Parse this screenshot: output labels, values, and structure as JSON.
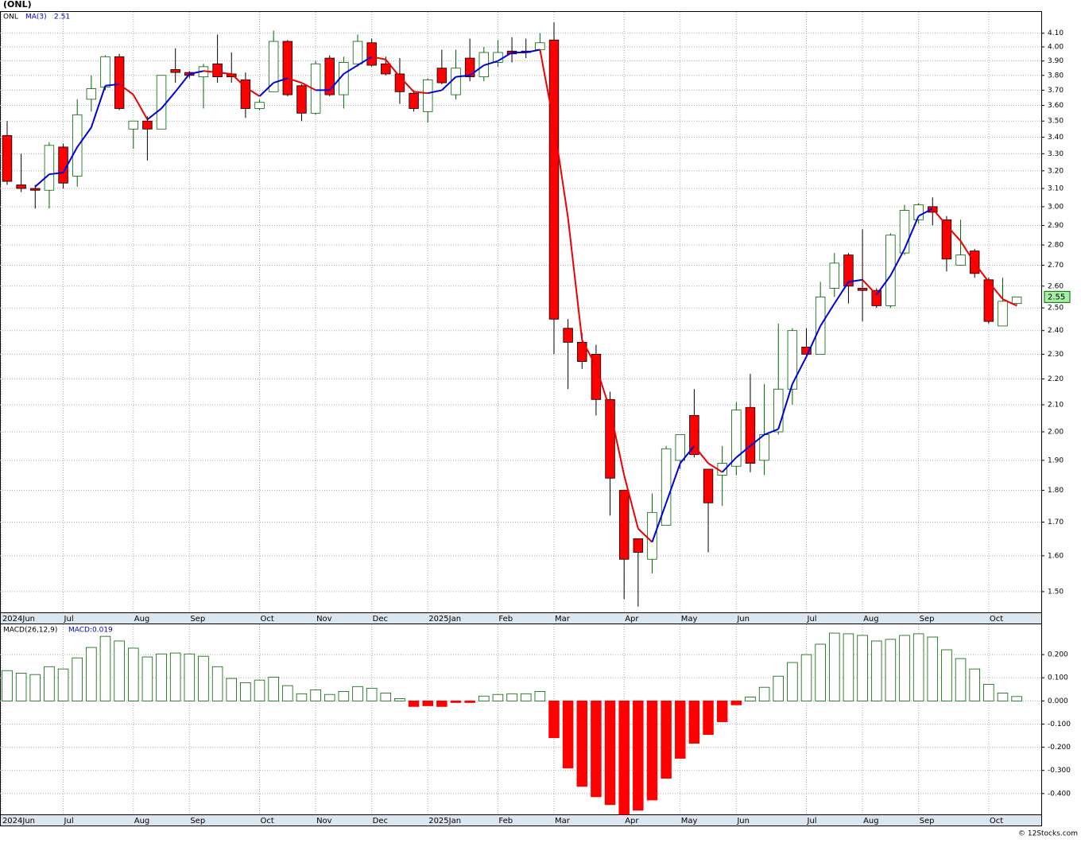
{
  "chart_data": [
    {
      "type": "candlestick",
      "title": "(ONL)",
      "ticker": "ONL",
      "log_scale": true,
      "grid": true,
      "up_color": "#006400",
      "down_color": "#ff0000",
      "xlim": [
        -0.51,
        73.75
      ],
      "xticks": [
        {
          "value": -0.4,
          "label": "2024Jun"
        },
        {
          "value": 4,
          "label": "Jul"
        },
        {
          "value": 9,
          "label": "Aug"
        },
        {
          "value": 13,
          "label": "Sep"
        },
        {
          "value": 18,
          "label": "Oct"
        },
        {
          "value": 22,
          "label": "Nov"
        },
        {
          "value": 26,
          "label": "Dec"
        },
        {
          "value": 30,
          "label": "2025Jan"
        },
        {
          "value": 35,
          "label": "Feb"
        },
        {
          "value": 39,
          "label": "Mar"
        },
        {
          "value": 44,
          "label": "Apr"
        },
        {
          "value": 48,
          "label": "May"
        },
        {
          "value": 52,
          "label": "Jun"
        },
        {
          "value": 57,
          "label": "Jul"
        },
        {
          "value": 61,
          "label": "Aug"
        },
        {
          "value": 65,
          "label": "Sep"
        },
        {
          "value": 70,
          "label": "Oct"
        }
      ],
      "ylim": [
        1.445,
        4.26
      ],
      "yticks": [
        {
          "value": 1.5,
          "label": "1.50"
        },
        {
          "value": 1.6,
          "label": "1.60"
        },
        {
          "value": 1.7,
          "label": "1.70"
        },
        {
          "value": 1.8,
          "label": "1.80"
        },
        {
          "value": 1.9,
          "label": "1.90"
        },
        {
          "value": 2.0,
          "label": "2.00"
        },
        {
          "value": 2.1,
          "label": "2.10"
        },
        {
          "value": 2.2,
          "label": "2.20"
        },
        {
          "value": 2.3,
          "label": "2.30"
        },
        {
          "value": 2.4,
          "label": "2.40"
        },
        {
          "value": 2.5,
          "label": "2.50"
        },
        {
          "value": 2.6,
          "label": "2.60"
        },
        {
          "value": 2.7,
          "label": "2.70"
        },
        {
          "value": 2.8,
          "label": "2.80"
        },
        {
          "value": 2.9,
          "label": "2.90"
        },
        {
          "value": 3.0,
          "label": "3.00"
        },
        {
          "value": 3.1,
          "label": "3.10"
        },
        {
          "value": 3.2,
          "label": "3.20"
        },
        {
          "value": 3.3,
          "label": "3.30"
        },
        {
          "value": 3.4,
          "label": "3.40"
        },
        {
          "value": 3.5,
          "label": "3.50"
        },
        {
          "value": 3.6,
          "label": "3.60"
        },
        {
          "value": 3.7,
          "label": "3.70"
        },
        {
          "value": 3.8,
          "label": "3.80"
        },
        {
          "value": 3.9,
          "label": "3.90"
        },
        {
          "value": 4.0,
          "label": "4.00"
        },
        {
          "value": 4.1,
          "label": "4.10"
        }
      ],
      "open": [
        3.41,
        3.12,
        3.1,
        3.09,
        3.34,
        3.17,
        3.64,
        3.72,
        3.93,
        3.45,
        3.5,
        3.45,
        3.84,
        3.82,
        3.79,
        3.88,
        3.81,
        3.77,
        3.58,
        3.69,
        4.04,
        3.73,
        3.55,
        3.92,
        3.67,
        3.88,
        4.03,
        3.88,
        3.81,
        3.68,
        3.56,
        3.85,
        3.67,
        3.92,
        3.79,
        3.89,
        3.97,
        3.97,
        3.98,
        4.05,
        2.41,
        2.35,
        2.3,
        2.12,
        1.8,
        1.65,
        1.59,
        1.69,
        1.9,
        2.06,
        1.87,
        1.85,
        1.88,
        2.09,
        1.9,
        2.0,
        2.16,
        2.33,
        2.3,
        2.59,
        2.75,
        2.59,
        2.58,
        2.51,
        2.76,
        2.93,
        3.0,
        2.93,
        2.7,
        2.77,
        2.63,
        2.42,
        2.52
      ],
      "high": [
        3.5,
        3.3,
        3.12,
        3.37,
        3.36,
        3.64,
        3.8,
        3.94,
        3.95,
        3.5,
        3.53,
        3.8,
        3.99,
        3.83,
        3.88,
        4.09,
        3.96,
        3.82,
        3.64,
        4.12,
        4.05,
        3.74,
        3.9,
        3.94,
        3.93,
        4.09,
        4.06,
        3.93,
        3.92,
        3.7,
        3.78,
        3.98,
        3.98,
        4.06,
        4.0,
        4.05,
        4.07,
        4.06,
        4.1,
        4.18,
        2.45,
        2.39,
        2.34,
        2.15,
        1.8,
        1.65,
        1.79,
        1.95,
        1.99,
        2.16,
        1.87,
        1.95,
        2.11,
        2.22,
        2.18,
        2.43,
        2.41,
        2.41,
        2.62,
        2.76,
        2.76,
        2.88,
        2.59,
        2.86,
        3.01,
        3.02,
        3.05,
        2.95,
        2.93,
        2.78,
        2.64,
        2.64,
        2.55
      ],
      "low": [
        3.12,
        3.08,
        2.99,
        2.99,
        3.1,
        3.11,
        3.56,
        3.7,
        3.57,
        3.33,
        3.26,
        3.45,
        3.75,
        3.78,
        3.58,
        3.75,
        3.75,
        3.52,
        3.57,
        3.69,
        3.66,
        3.5,
        3.54,
        3.66,
        3.58,
        3.86,
        3.86,
        3.8,
        3.61,
        3.56,
        3.49,
        3.74,
        3.64,
        3.76,
        3.76,
        3.86,
        3.89,
        3.92,
        3.97,
        2.3,
        2.16,
        2.24,
        2.06,
        1.72,
        1.48,
        1.46,
        1.55,
        1.69,
        1.87,
        1.91,
        1.61,
        1.75,
        1.85,
        1.86,
        1.85,
        1.99,
        2.1,
        2.29,
        2.3,
        2.55,
        2.52,
        2.44,
        2.5,
        2.5,
        2.75,
        2.91,
        2.9,
        2.67,
        2.7,
        2.64,
        2.43,
        2.42,
        2.51
      ],
      "close": [
        3.14,
        3.1,
        3.09,
        3.35,
        3.13,
        3.54,
        3.71,
        3.93,
        3.58,
        3.5,
        3.45,
        3.8,
        3.82,
        3.8,
        3.86,
        3.79,
        3.79,
        3.58,
        3.62,
        4.04,
        3.67,
        3.55,
        3.88,
        3.67,
        3.89,
        4.04,
        3.87,
        3.81,
        3.69,
        3.58,
        3.77,
        3.75,
        3.85,
        3.79,
        3.96,
        3.96,
        3.95,
        3.96,
        4.03,
        2.45,
        2.35,
        2.27,
        2.12,
        1.84,
        1.59,
        1.61,
        1.73,
        1.94,
        1.99,
        1.92,
        1.76,
        1.89,
        2.08,
        1.89,
        1.99,
        2.16,
        2.4,
        2.3,
        2.55,
        2.71,
        2.6,
        2.58,
        2.51,
        2.85,
        2.98,
        3.01,
        2.97,
        2.73,
        2.75,
        2.66,
        2.44,
        2.53,
        2.55
      ],
      "series": [
        {
          "name": "MA(3)",
          "rising_color": "#0000dd",
          "falling_color": "#ee0000",
          "values": [
            null,
            null,
            3.11,
            3.18,
            3.19,
            3.34,
            3.46,
            3.73,
            3.74,
            3.67,
            3.51,
            3.58,
            3.69,
            3.81,
            3.83,
            3.82,
            3.81,
            3.72,
            3.66,
            3.75,
            3.78,
            3.75,
            3.7,
            3.7,
            3.81,
            3.87,
            3.93,
            3.91,
            3.79,
            3.69,
            3.68,
            3.7,
            3.79,
            3.8,
            3.87,
            3.9,
            3.96,
            3.96,
            3.98,
            3.48,
            2.94,
            2.36,
            2.25,
            2.08,
            1.85,
            1.68,
            1.64,
            1.76,
            1.89,
            1.95,
            1.89,
            1.86,
            1.91,
            1.95,
            1.99,
            2.01,
            2.18,
            2.29,
            2.42,
            2.52,
            2.62,
            2.63,
            2.56,
            2.65,
            2.78,
            2.95,
            2.99,
            2.9,
            2.82,
            2.71,
            2.62,
            2.54,
            2.51
          ]
        }
      ]
    },
    {
      "type": "bar",
      "legend": [
        "MACD(26,12,9)",
        "MACD:0.019"
      ],
      "grid": true,
      "positive_color": "#006400",
      "negative_color": "#ff0000",
      "xlim": [
        -0.51,
        73.75
      ],
      "xticks": [
        {
          "value": -0.4,
          "label": "2024Jun"
        },
        {
          "value": 4,
          "label": "Jul"
        },
        {
          "value": 9,
          "label": "Aug"
        },
        {
          "value": 13,
          "label": "Sep"
        },
        {
          "value": 18,
          "label": "Oct"
        },
        {
          "value": 22,
          "label": "Nov"
        },
        {
          "value": 26,
          "label": "Dec"
        },
        {
          "value": 30,
          "label": "2025Jan"
        },
        {
          "value": 35,
          "label": "Feb"
        },
        {
          "value": 39,
          "label": "Mar"
        },
        {
          "value": 44,
          "label": "Apr"
        },
        {
          "value": 48,
          "label": "May"
        },
        {
          "value": 52,
          "label": "Jun"
        },
        {
          "value": 57,
          "label": "Jul"
        },
        {
          "value": 61,
          "label": "Aug"
        },
        {
          "value": 65,
          "label": "Sep"
        },
        {
          "value": 70,
          "label": "Oct"
        }
      ],
      "ylim": [
        -0.49,
        0.331
      ],
      "yticks": [
        {
          "value": -0.4,
          "label": "-0.400"
        },
        {
          "value": -0.3,
          "label": "-0.300"
        },
        {
          "value": -0.2,
          "label": "-0.200"
        },
        {
          "value": -0.1,
          "label": "-0.100"
        },
        {
          "value": 0,
          "label": "0.000"
        },
        {
          "value": 0.1,
          "label": "0.100"
        },
        {
          "value": 0.2,
          "label": "0.200"
        }
      ],
      "values": [
        0.131,
        0.12,
        0.114,
        0.148,
        0.138,
        0.186,
        0.231,
        0.279,
        0.259,
        0.228,
        0.19,
        0.203,
        0.207,
        0.203,
        0.193,
        0.148,
        0.097,
        0.079,
        0.09,
        0.103,
        0.066,
        0.031,
        0.048,
        0.028,
        0.041,
        0.062,
        0.055,
        0.034,
        0.01,
        -0.024,
        -0.021,
        -0.024,
        -0.007,
        -0.007,
        0.021,
        0.028,
        0.031,
        0.031,
        0.041,
        -0.159,
        -0.29,
        -0.369,
        -0.414,
        -0.448,
        -0.49,
        -0.472,
        -0.428,
        -0.334,
        -0.248,
        -0.183,
        -0.145,
        -0.09,
        -0.017,
        0.017,
        0.059,
        0.107,
        0.166,
        0.2,
        0.245,
        0.293,
        0.29,
        0.283,
        0.259,
        0.266,
        0.283,
        0.29,
        0.276,
        0.221,
        0.183,
        0.138,
        0.072,
        0.034,
        0.019
      ]
    }
  ],
  "footer": "© 12Stocks.com"
}
